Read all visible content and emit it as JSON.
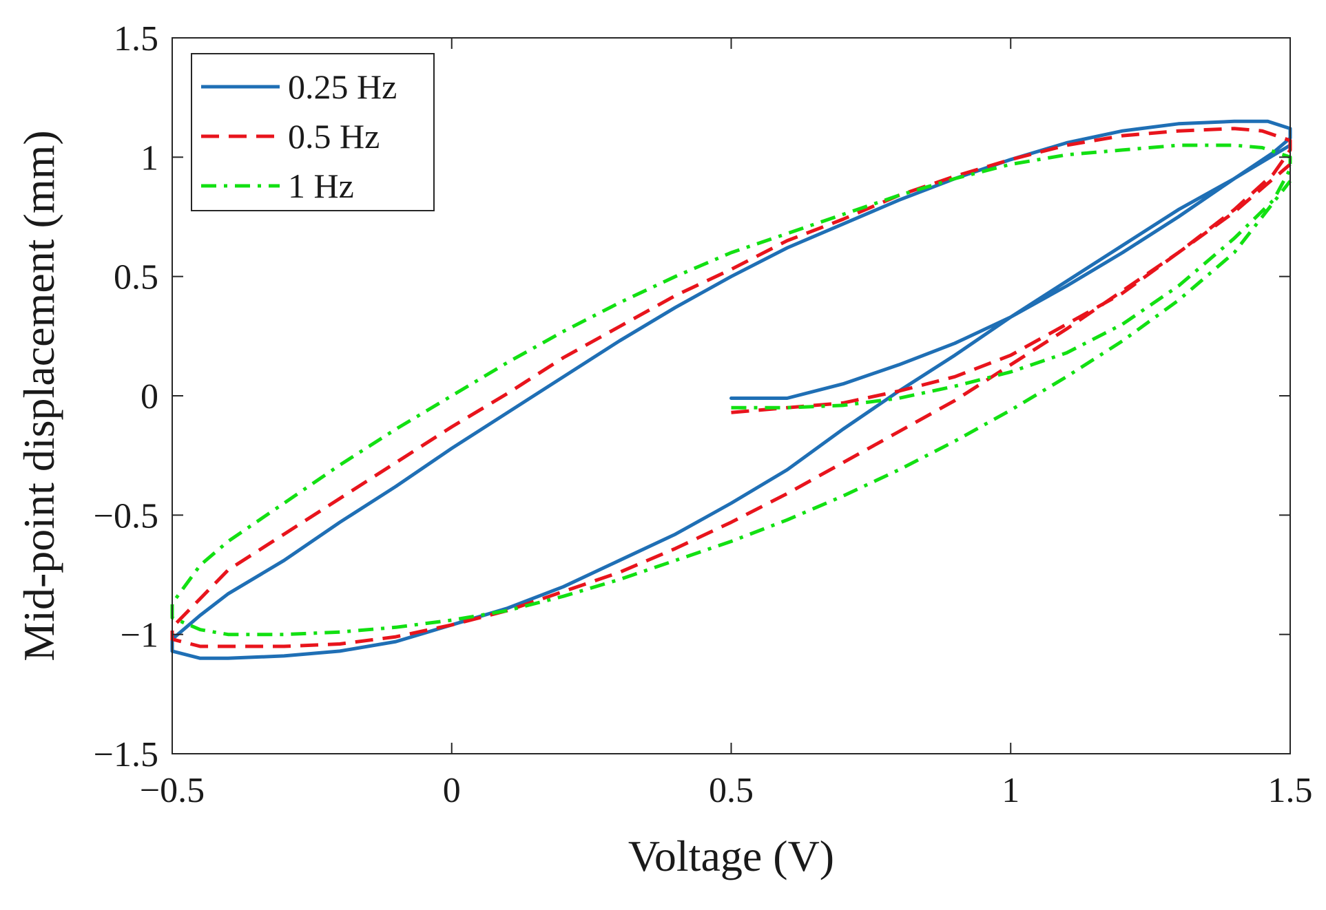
{
  "chart_data": {
    "type": "line",
    "title": "",
    "xlabel": "Voltage (V)",
    "ylabel": "Mid-point displacement (mm)",
    "xlim": [
      -0.5,
      1.5
    ],
    "ylim": [
      -1.5,
      1.5
    ],
    "xticks": [
      -0.5,
      0,
      0.5,
      1,
      1.5
    ],
    "xtick_labels": [
      "−0.5",
      "0",
      "0.5",
      "1",
      "1.5"
    ],
    "yticks": [
      -1.5,
      -1,
      -0.5,
      0,
      0.5,
      1,
      1.5
    ],
    "ytick_labels": [
      "−1.5",
      "−1",
      "−0.5",
      "0",
      "0.5",
      "1",
      "1.5"
    ],
    "grid": false,
    "legend_position": "top-left",
    "series": [
      {
        "name": "0.25 Hz",
        "color": "#1f6fb5",
        "style": "solid",
        "points": [
          [
            0.5,
            -0.01
          ],
          [
            0.6,
            -0.01
          ],
          [
            0.7,
            0.05
          ],
          [
            0.8,
            0.13
          ],
          [
            0.9,
            0.22
          ],
          [
            1.0,
            0.33
          ],
          [
            1.1,
            0.46
          ],
          [
            1.2,
            0.6
          ],
          [
            1.3,
            0.75
          ],
          [
            1.4,
            0.91
          ],
          [
            1.47,
            1.02
          ],
          [
            1.5,
            1.08
          ],
          [
            1.5,
            1.12
          ],
          [
            1.46,
            1.15
          ],
          [
            1.4,
            1.15
          ],
          [
            1.3,
            1.14
          ],
          [
            1.2,
            1.11
          ],
          [
            1.1,
            1.06
          ],
          [
            1.0,
            0.99
          ],
          [
            0.9,
            0.91
          ],
          [
            0.8,
            0.82
          ],
          [
            0.7,
            0.72
          ],
          [
            0.6,
            0.62
          ],
          [
            0.5,
            0.5
          ],
          [
            0.4,
            0.37
          ],
          [
            0.3,
            0.23
          ],
          [
            0.2,
            0.08
          ],
          [
            0.1,
            -0.07
          ],
          [
            0.0,
            -0.22
          ],
          [
            -0.1,
            -0.38
          ],
          [
            -0.2,
            -0.53
          ],
          [
            -0.3,
            -0.69
          ],
          [
            -0.4,
            -0.83
          ],
          [
            -0.45,
            -0.92
          ],
          [
            -0.5,
            -1.02
          ],
          [
            -0.5,
            -1.07
          ],
          [
            -0.45,
            -1.1
          ],
          [
            -0.4,
            -1.1
          ],
          [
            -0.3,
            -1.09
          ],
          [
            -0.2,
            -1.07
          ],
          [
            -0.1,
            -1.03
          ],
          [
            0.0,
            -0.96
          ],
          [
            0.1,
            -0.89
          ],
          [
            0.2,
            -0.8
          ],
          [
            0.3,
            -0.69
          ],
          [
            0.4,
            -0.58
          ],
          [
            0.5,
            -0.45
          ],
          [
            0.6,
            -0.31
          ],
          [
            0.7,
            -0.14
          ],
          [
            0.8,
            0.02
          ],
          [
            0.9,
            0.17
          ],
          [
            1.0,
            0.33
          ],
          [
            1.1,
            0.48
          ],
          [
            1.2,
            0.63
          ],
          [
            1.3,
            0.78
          ],
          [
            1.4,
            0.91
          ],
          [
            1.5,
            1.05
          ]
        ]
      },
      {
        "name": "0.5 Hz",
        "color": "#e8141c",
        "style": "dashed",
        "points": [
          [
            0.5,
            -0.07
          ],
          [
            0.6,
            -0.05
          ],
          [
            0.7,
            -0.03
          ],
          [
            0.8,
            0.02
          ],
          [
            0.9,
            0.08
          ],
          [
            1.0,
            0.17
          ],
          [
            1.1,
            0.3
          ],
          [
            1.2,
            0.43
          ],
          [
            1.3,
            0.6
          ],
          [
            1.4,
            0.78
          ],
          [
            1.47,
            0.93
          ],
          [
            1.5,
            1.03
          ],
          [
            1.5,
            1.07
          ],
          [
            1.45,
            1.11
          ],
          [
            1.4,
            1.12
          ],
          [
            1.3,
            1.11
          ],
          [
            1.2,
            1.09
          ],
          [
            1.1,
            1.05
          ],
          [
            1.0,
            0.99
          ],
          [
            0.9,
            0.92
          ],
          [
            0.8,
            0.84
          ],
          [
            0.7,
            0.74
          ],
          [
            0.6,
            0.65
          ],
          [
            0.5,
            0.53
          ],
          [
            0.4,
            0.42
          ],
          [
            0.3,
            0.29
          ],
          [
            0.2,
            0.16
          ],
          [
            0.1,
            0.01
          ],
          [
            0.0,
            -0.13
          ],
          [
            -0.1,
            -0.28
          ],
          [
            -0.2,
            -0.43
          ],
          [
            -0.3,
            -0.58
          ],
          [
            -0.4,
            -0.73
          ],
          [
            -0.45,
            -0.85
          ],
          [
            -0.5,
            -0.97
          ],
          [
            -0.5,
            -1.02
          ],
          [
            -0.45,
            -1.05
          ],
          [
            -0.4,
            -1.05
          ],
          [
            -0.3,
            -1.05
          ],
          [
            -0.2,
            -1.04
          ],
          [
            -0.1,
            -1.01
          ],
          [
            0.0,
            -0.96
          ],
          [
            0.1,
            -0.9
          ],
          [
            0.2,
            -0.82
          ],
          [
            0.3,
            -0.74
          ],
          [
            0.4,
            -0.64
          ],
          [
            0.5,
            -0.53
          ],
          [
            0.6,
            -0.41
          ],
          [
            0.7,
            -0.28
          ],
          [
            0.8,
            -0.15
          ],
          [
            0.9,
            -0.02
          ],
          [
            1.0,
            0.13
          ],
          [
            1.1,
            0.28
          ],
          [
            1.2,
            0.44
          ],
          [
            1.3,
            0.6
          ],
          [
            1.4,
            0.77
          ],
          [
            1.5,
            0.97
          ]
        ]
      },
      {
        "name": "1 Hz",
        "color": "#12e012",
        "style": "dashdot",
        "points": [
          [
            0.5,
            -0.05
          ],
          [
            0.6,
            -0.05
          ],
          [
            0.7,
            -0.04
          ],
          [
            0.8,
            -0.01
          ],
          [
            0.9,
            0.04
          ],
          [
            1.0,
            0.1
          ],
          [
            1.1,
            0.18
          ],
          [
            1.2,
            0.3
          ],
          [
            1.3,
            0.46
          ],
          [
            1.4,
            0.66
          ],
          [
            1.47,
            0.82
          ],
          [
            1.5,
            0.95
          ],
          [
            1.5,
            1.0
          ],
          [
            1.45,
            1.04
          ],
          [
            1.4,
            1.05
          ],
          [
            1.3,
            1.05
          ],
          [
            1.2,
            1.03
          ],
          [
            1.1,
            1.01
          ],
          [
            1.0,
            0.97
          ],
          [
            0.9,
            0.91
          ],
          [
            0.8,
            0.84
          ],
          [
            0.7,
            0.76
          ],
          [
            0.6,
            0.68
          ],
          [
            0.5,
            0.6
          ],
          [
            0.4,
            0.5
          ],
          [
            0.3,
            0.39
          ],
          [
            0.2,
            0.27
          ],
          [
            0.1,
            0.14
          ],
          [
            0.0,
            0.0
          ],
          [
            -0.1,
            -0.14
          ],
          [
            -0.2,
            -0.29
          ],
          [
            -0.3,
            -0.45
          ],
          [
            -0.4,
            -0.61
          ],
          [
            -0.45,
            -0.71
          ],
          [
            -0.5,
            -0.87
          ],
          [
            -0.5,
            -0.93
          ],
          [
            -0.45,
            -0.98
          ],
          [
            -0.4,
            -1.0
          ],
          [
            -0.3,
            -1.0
          ],
          [
            -0.2,
            -0.99
          ],
          [
            -0.1,
            -0.97
          ],
          [
            0.0,
            -0.94
          ],
          [
            0.1,
            -0.9
          ],
          [
            0.2,
            -0.84
          ],
          [
            0.3,
            -0.77
          ],
          [
            0.4,
            -0.69
          ],
          [
            0.5,
            -0.61
          ],
          [
            0.6,
            -0.52
          ],
          [
            0.7,
            -0.42
          ],
          [
            0.8,
            -0.31
          ],
          [
            0.9,
            -0.19
          ],
          [
            1.0,
            -0.06
          ],
          [
            1.1,
            0.08
          ],
          [
            1.2,
            0.23
          ],
          [
            1.3,
            0.4
          ],
          [
            1.4,
            0.6
          ],
          [
            1.5,
            0.9
          ]
        ]
      }
    ]
  }
}
